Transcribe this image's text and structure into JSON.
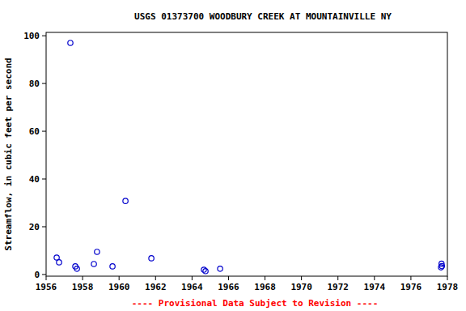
{
  "chart_data": {
    "type": "scatter",
    "title": "USGS 01373700 WOODBURY CREEK AT MOUNTAINVILLE NY",
    "y_label": "Streamflow, in cubic feet per second",
    "footnote": "---- Provisional Data Subject to Revision ----",
    "x": [
      1956.58,
      1956.71,
      1957.33,
      1957.6,
      1957.69,
      1958.62,
      1958.79,
      1959.64,
      1960.35,
      1961.77,
      1964.65,
      1964.74,
      1965.54,
      1977.65,
      1977.7,
      1977.68
    ],
    "values": [
      7.1,
      5.1,
      97,
      3.4,
      2.4,
      4.4,
      9.5,
      3.4,
      30.8,
      6.8,
      2.0,
      1.4,
      2.4,
      3.0,
      3.5,
      4.5
    ],
    "color": "#0000cc",
    "marker": "open-circle",
    "xlim": [
      1956,
      1978
    ],
    "xticks": [
      1956,
      1958,
      1960,
      1962,
      1964,
      1966,
      1968,
      1970,
      1972,
      1974,
      1976,
      1978
    ],
    "ylim": [
      -0.7,
      101.4
    ],
    "yticks": [
      0,
      20,
      40,
      60,
      80,
      100
    ],
    "grid": false
  }
}
